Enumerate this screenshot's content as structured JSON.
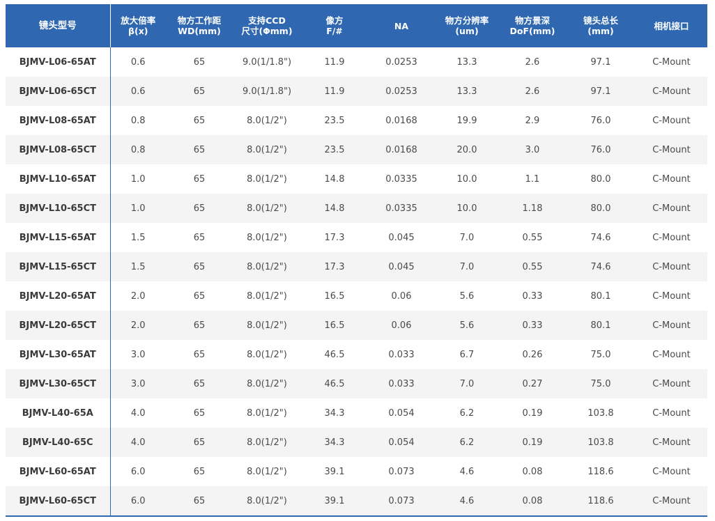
{
  "table": {
    "columns": [
      "镜头型号",
      "放大倍率\nβ(x)",
      "物方工作距\nWD(mm)",
      "支持CCD\n尺寸(Φmm)",
      "像方\nF/#",
      "NA",
      "物方分辨率\n(um)",
      "物方景深\nDoF(mm)",
      "镜头总长\n(mm)",
      "相机接口"
    ],
    "rows": [
      [
        "BJMV-L06-65AT",
        "0.6",
        "65",
        "9.0(1/1.8\")",
        "11.9",
        "0.0253",
        "13.3",
        "2.6",
        "97.1",
        "C-Mount"
      ],
      [
        "BJMV-L06-65CT",
        "0.6",
        "65",
        "9.0(1/1.8\")",
        "11.9",
        "0.0253",
        "13.3",
        "2.6",
        "97.1",
        "C-Mount"
      ],
      [
        "BJMV-L08-65AT",
        "0.8",
        "65",
        "8.0(1/2\")",
        "23.5",
        "0.0168",
        "19.9",
        "2.9",
        "76.0",
        "C-Mount"
      ],
      [
        "BJMV-L08-65CT",
        "0.8",
        "65",
        "8.0(1/2\")",
        "23.5",
        "0.0168",
        "20.0",
        "3.0",
        "76.0",
        "C-Mount"
      ],
      [
        "BJMV-L10-65AT",
        "1.0",
        "65",
        "8.0(1/2\")",
        "14.8",
        "0.0335",
        "10.0",
        "1.1",
        "80.0",
        "C-Mount"
      ],
      [
        "BJMV-L10-65CT",
        "1.0",
        "65",
        "8.0(1/2\")",
        "14.8",
        "0.0335",
        "10.0",
        "1.18",
        "80.0",
        "C-Mount"
      ],
      [
        "BJMV-L15-65AT",
        "1.5",
        "65",
        "8.0(1/2\")",
        "17.3",
        "0.045",
        "7.0",
        "0.55",
        "74.6",
        "C-Mount"
      ],
      [
        "BJMV-L15-65CT",
        "1.5",
        "65",
        "8.0(1/2\")",
        "17.3",
        "0.045",
        "7.0",
        "0.55",
        "74.6",
        "C-Mount"
      ],
      [
        "BJMV-L20-65AT",
        "2.0",
        "65",
        "8.0(1/2\")",
        "16.5",
        "0.06",
        "5.6",
        "0.33",
        "80.1",
        "C-Mount"
      ],
      [
        "BJMV-L20-65CT",
        "2.0",
        "65",
        "8.0(1/2\")",
        "16.5",
        "0.06",
        "5.6",
        "0.33",
        "80.1",
        "C-Mount"
      ],
      [
        "BJMV-L30-65AT",
        "3.0",
        "65",
        "8.0(1/2\")",
        "46.5",
        "0.033",
        "6.7",
        "0.26",
        "75.0",
        "C-Mount"
      ],
      [
        "BJMV-L30-65CT",
        "3.0",
        "65",
        "8.0(1/2\")",
        "46.5",
        "0.033",
        "7.0",
        "0.27",
        "75.0",
        "C-Mount"
      ],
      [
        "BJMV-L40-65A",
        "4.0",
        "65",
        "8.0(1/2\")",
        "34.3",
        "0.054",
        "6.2",
        "0.19",
        "103.8",
        "C-Mount"
      ],
      [
        "BJMV-L40-65C",
        "4.0",
        "65",
        "8.0(1/2\")",
        "34.3",
        "0.054",
        "6.2",
        "0.19",
        "103.8",
        "C-Mount"
      ],
      [
        "BJMV-L60-65AT",
        "6.0",
        "65",
        "8.0(1/2\")",
        "39.1",
        "0.073",
        "4.6",
        "0.08",
        "118.6",
        "C-Mount"
      ],
      [
        "BJMV-L60-65CT",
        "6.0",
        "65",
        "8.0(1/2\")",
        "39.1",
        "0.073",
        "4.6",
        "0.08",
        "118.6",
        "C-Mount"
      ]
    ]
  },
  "colors": {
    "header_bg": "#2f68b0",
    "header_text": "#ffffff",
    "stripe": "#f4f4f4",
    "cell_text": "#4a4a4a"
  }
}
